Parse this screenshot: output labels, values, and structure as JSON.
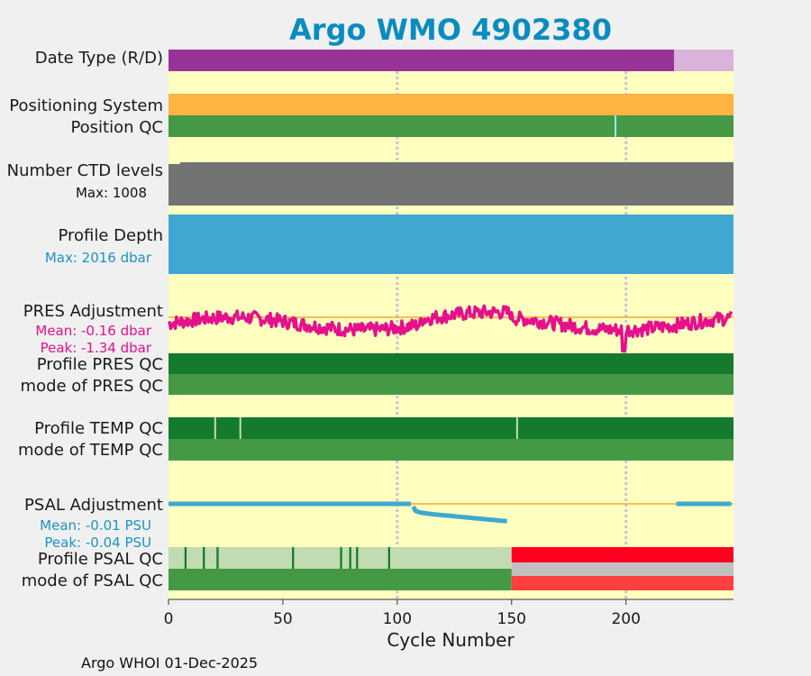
{
  "title": "Argo WMO 4902380",
  "footer": "Argo WHOI 01-Dec-2025",
  "chart_data": {
    "type": "timeline",
    "xlabel": "Cycle Number",
    "xlim": [
      0,
      247
    ],
    "xticks": [
      0,
      50,
      100,
      150,
      200
    ],
    "vlines": [
      100,
      200
    ],
    "colors": {
      "background": "#ffffc0",
      "purple": "#993399",
      "light_purple": "#d9b3d9",
      "orange": "#ffb340",
      "green": "#459945",
      "dark_green": "#147a2e",
      "light_green": "#c0dcb0",
      "gray": "#737373",
      "light_gray": "#c0c0c0",
      "blue": "#40a8d0",
      "magenta": "#e6108c",
      "red": "#ff0020",
      "light_red": "#ff4040",
      "zero_line": "#f0a830",
      "light_blue": "#a0e0ff"
    },
    "rows": {
      "date_type": {
        "label": "Date Type (R/D)",
        "segments": [
          {
            "from": 0,
            "to": 221,
            "color": "purple",
            "code": "D"
          },
          {
            "from": 221,
            "to": 247,
            "color": "light_purple",
            "code": "R"
          }
        ]
      },
      "positioning_system": {
        "label": "Positioning System"
      },
      "position_qc": {
        "label": "Position QC",
        "marks": [
          195
        ]
      },
      "ctd_levels": {
        "label": "Number CTD levels",
        "max_label": "Max: 1008",
        "max": 1008
      },
      "profile_depth": {
        "label": "Profile Depth",
        "max_label": "Max: 2016 dbar",
        "max": 2016
      },
      "pres_adjustment": {
        "label": "PRES Adjustment",
        "mean_label": "Mean: -0.16 dbar",
        "peak_label": "Peak: -1.34 dbar",
        "mean": -0.16,
        "peak": -1.34,
        "peak_cycle": 199,
        "ylim": [
          -1.5,
          0.8
        ]
      },
      "profile_pres_qc": {
        "label": "Profile PRES QC"
      },
      "mode_pres_qc": {
        "label": "mode of PRES QC"
      },
      "profile_temp_qc": {
        "label": "Profile TEMP QC",
        "marks": [
          20,
          31,
          152
        ]
      },
      "mode_temp_qc": {
        "label": "mode of TEMP QC"
      },
      "psal_adjustment": {
        "label": "PSAL Adjustment",
        "mean_label": "Mean: -0.01 PSU",
        "peak_label": "Peak: -0.04 PSU",
        "mean": -0.01,
        "peak": -0.04,
        "ylim": [
          -0.045,
          0.01
        ],
        "segments": [
          {
            "x": [
              0,
              100,
              106
            ],
            "y": [
              0,
              0,
              0
            ]
          },
          {
            "x": [
              107,
              108,
              110,
              115,
              120,
              125,
              130,
              135,
              140,
              145,
              148
            ],
            "y": [
              -0.005,
              -0.013,
              -0.016,
              -0.019,
              -0.021,
              -0.023,
              -0.025,
              -0.027,
              -0.029,
              -0.031,
              -0.032
            ]
          },
          {
            "x": [
              222,
              246
            ],
            "y": [
              0,
              0
            ]
          }
        ]
      },
      "profile_psal_qc": {
        "label": "Profile PSAL QC",
        "marks": [
          7,
          15,
          21,
          54,
          75,
          79,
          82,
          96
        ]
      },
      "mode_psal_qc": {
        "label": "mode of PSAL QC",
        "split": 150
      }
    }
  }
}
